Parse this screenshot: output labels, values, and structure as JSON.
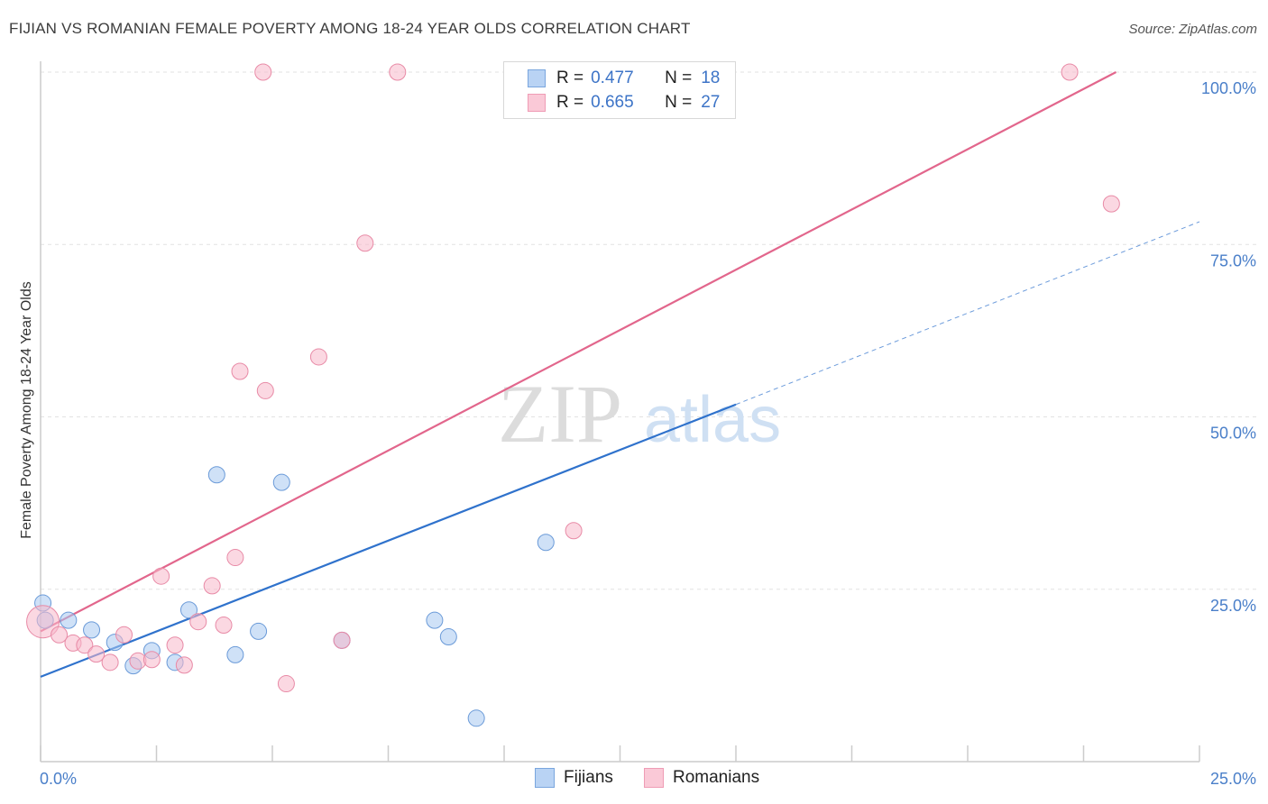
{
  "title": "FIJIAN VS ROMANIAN FEMALE POVERTY AMONG 18-24 YEAR OLDS CORRELATION CHART",
  "source": "Source: ZipAtlas.com",
  "watermark": {
    "zip": "ZIP",
    "atlas": "atlas"
  },
  "legend": {
    "rows": [
      {
        "r_label": "R =",
        "r_value": "0.477",
        "n_label": "N =",
        "n_value": "18",
        "color": "#a8c8f0"
      },
      {
        "r_label": "R =",
        "r_value": "0.665",
        "n_label": "N =",
        "n_value": "27",
        "color": "#f7b8cb"
      }
    ]
  },
  "bottom_legend": {
    "fijians": "Fijians",
    "romanians": "Romanians"
  },
  "chart_data": {
    "type": "scatter",
    "title": "FIJIAN VS ROMANIAN FEMALE POVERTY AMONG 18-24 YEAR OLDS CORRELATION CHART",
    "xlabel": "",
    "ylabel": "Female Poverty Among 18-24 Year Olds",
    "xlim": [
      0,
      25
    ],
    "ylim": [
      0,
      100
    ],
    "x_tick_labels": [
      "0.0%",
      "25.0%"
    ],
    "y_tick_labels": [
      "25.0%",
      "50.0%",
      "75.0%",
      "100.0%"
    ],
    "y_ticks": [
      25,
      50,
      75,
      100
    ],
    "grid": true,
    "series": [
      {
        "name": "Fijians",
        "color": "#a8c8f0",
        "edge": "#6a9ad8",
        "line_color": "#2f72cc",
        "points": [
          [
            0.05,
            23.0
          ],
          [
            0.6,
            20.5
          ],
          [
            1.1,
            19.1
          ],
          [
            1.6,
            17.3
          ],
          [
            2.0,
            13.9
          ],
          [
            2.4,
            16.1
          ],
          [
            2.9,
            14.4
          ],
          [
            3.2,
            22.0
          ],
          [
            3.8,
            41.6
          ],
          [
            4.2,
            15.5
          ],
          [
            4.7,
            18.9
          ],
          [
            5.2,
            40.5
          ],
          [
            6.5,
            17.6
          ],
          [
            8.5,
            20.5
          ],
          [
            8.8,
            18.1
          ],
          [
            9.4,
            6.3
          ],
          [
            10.9,
            31.8
          ],
          [
            0.1,
            20.5
          ]
        ],
        "trend": {
          "x": [
            0,
            15
          ],
          "y": [
            12.3,
            51.8
          ]
        },
        "trend_dashed": {
          "x": [
            15,
            25
          ],
          "y": [
            51.8,
            78.3
          ]
        }
      },
      {
        "name": "Romanians",
        "color": "#f7b8cb",
        "edge": "#e88aa6",
        "line_color": "#e2668c",
        "points": [
          [
            0.05,
            20.3
          ],
          [
            0.4,
            18.4
          ],
          [
            0.7,
            17.2
          ],
          [
            0.95,
            16.9
          ],
          [
            1.2,
            15.6
          ],
          [
            1.5,
            14.4
          ],
          [
            1.8,
            18.4
          ],
          [
            2.1,
            14.6
          ],
          [
            2.4,
            14.8
          ],
          [
            2.6,
            26.9
          ],
          [
            2.9,
            16.9
          ],
          [
            3.1,
            14.0
          ],
          [
            3.4,
            20.3
          ],
          [
            3.7,
            25.5
          ],
          [
            3.95,
            19.8
          ],
          [
            4.2,
            29.6
          ],
          [
            4.3,
            56.6
          ],
          [
            4.8,
            100.0
          ],
          [
            4.85,
            53.8
          ],
          [
            5.3,
            11.3
          ],
          [
            6.0,
            58.7
          ],
          [
            6.5,
            17.6
          ],
          [
            7.0,
            75.2
          ],
          [
            7.7,
            100.0
          ],
          [
            11.5,
            33.5
          ],
          [
            22.2,
            100.0
          ],
          [
            23.1,
            80.9
          ]
        ],
        "trend": {
          "x": [
            0,
            23.2
          ],
          "y": [
            18.9,
            100.0
          ]
        }
      }
    ]
  }
}
